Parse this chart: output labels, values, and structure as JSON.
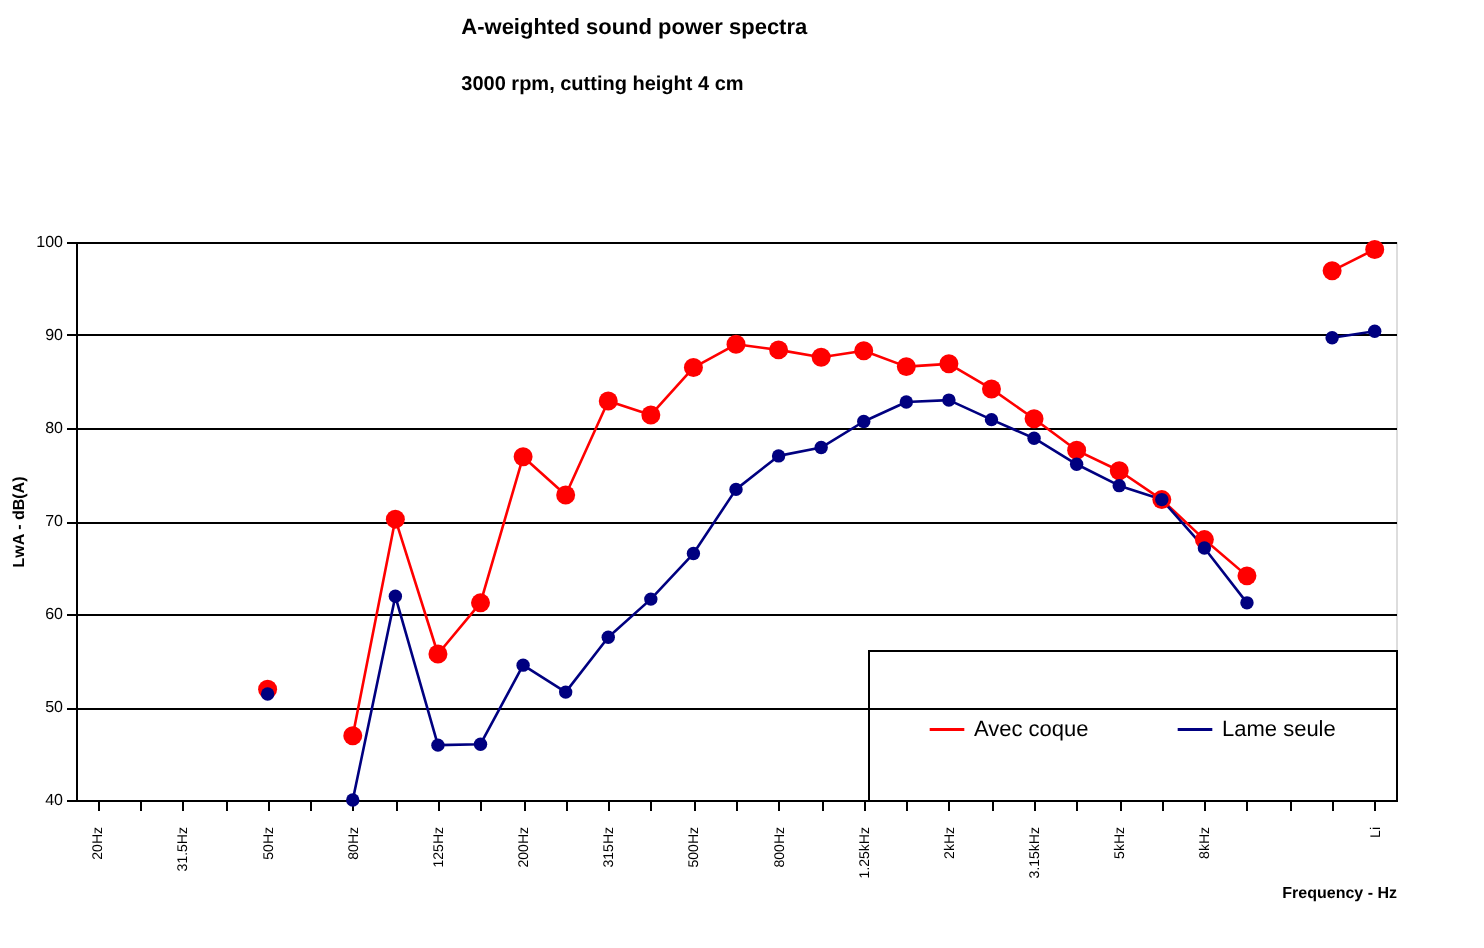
{
  "chart_data": {
    "type": "line",
    "title": "A-weighted sound power spectra",
    "subtitle": "3000 rpm, cutting height 4 cm",
    "xlabel": "Frequency - Hz",
    "ylabel": "LwA - dB(A)",
    "categories": [
      "20Hz",
      null,
      "31.5Hz",
      null,
      "50Hz",
      null,
      "80Hz",
      null,
      "125Hz",
      null,
      "200Hz",
      null,
      "315Hz",
      null,
      "500Hz",
      null,
      "800Hz",
      null,
      "1.25kHz",
      null,
      "2kHz",
      null,
      "3.15kHz",
      null,
      "5kHz",
      null,
      "8kHz",
      null,
      null,
      null,
      "Li"
    ],
    "series": [
      {
        "name": "Avec coque",
        "color": "#ff0000",
        "values": [
          null,
          null,
          null,
          null,
          51.9,
          null,
          46.9,
          70.2,
          55.7,
          61.2,
          76.9,
          72.8,
          82.9,
          81.4,
          86.5,
          89.0,
          88.4,
          87.6,
          88.3,
          86.6,
          86.9,
          84.2,
          81.0,
          77.6,
          75.4,
          72.3,
          68.0,
          64.1,
          null,
          96.9,
          99.2
        ]
      },
      {
        "name": "Lame seule",
        "color": "#000080",
        "values": [
          null,
          null,
          null,
          null,
          51.4,
          null,
          40.0,
          61.9,
          45.9,
          46.0,
          54.5,
          51.6,
          57.5,
          61.6,
          66.5,
          73.4,
          77.0,
          77.9,
          80.7,
          82.8,
          83.0,
          80.9,
          78.9,
          76.1,
          73.8,
          72.3,
          67.1,
          61.2,
          null,
          89.7,
          90.4
        ]
      }
    ],
    "ylim": [
      40,
      100
    ],
    "yticks": [
      40,
      50,
      60,
      70,
      80,
      90,
      100
    ],
    "grid": "y",
    "legend": "bottom right",
    "marker": "circle",
    "line_style": "solid"
  }
}
